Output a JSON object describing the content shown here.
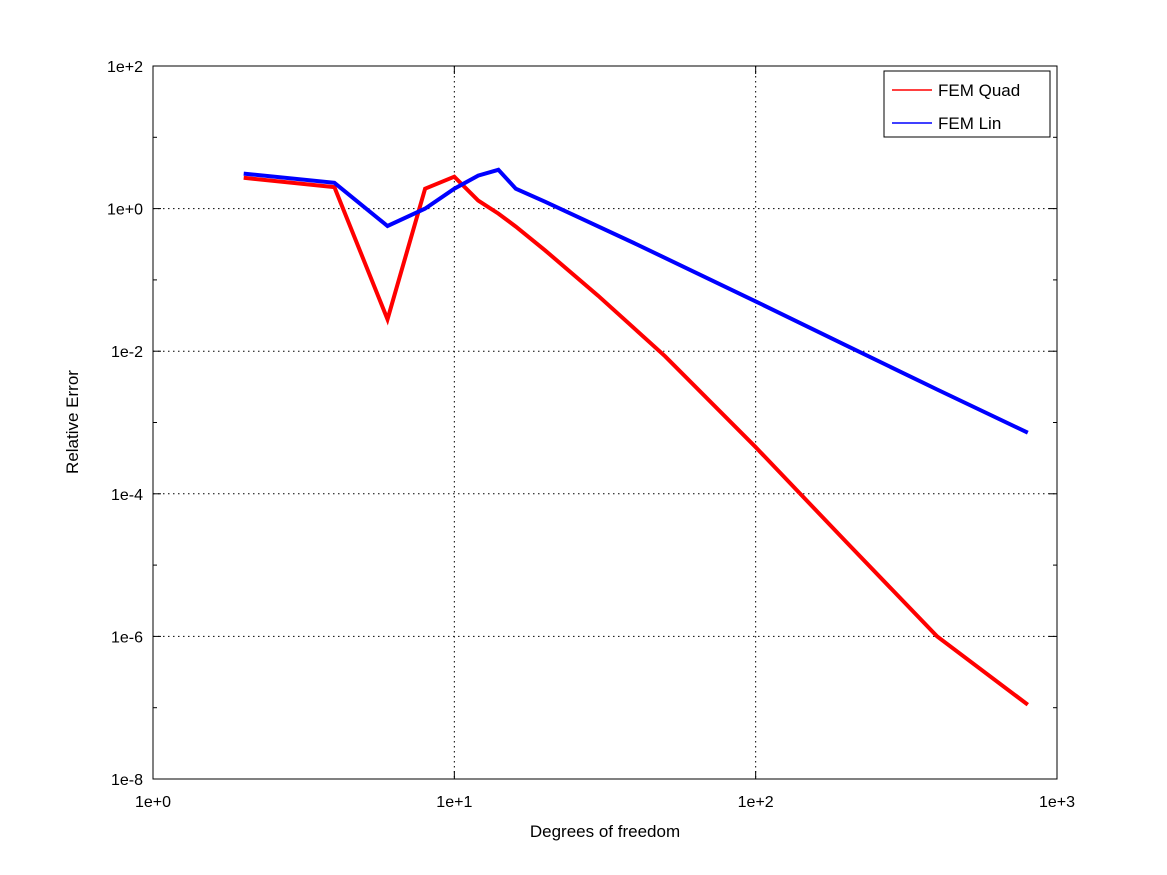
{
  "chart_data": {
    "type": "line",
    "title": "",
    "xlabel": "Degrees of freedom",
    "ylabel": "Relative Error",
    "xscale": "log",
    "yscale": "log",
    "xlim": [
      1,
      1000
    ],
    "ylim": [
      1e-08,
      100
    ],
    "grid": true,
    "legend_position": "top-right",
    "x_tick_labels": [
      "1e+0",
      "1e+1",
      "1e+2",
      "1e+3"
    ],
    "y_tick_labels": [
      "1e-8",
      "1e-6",
      "1e-4",
      "1e-2",
      "1e+0",
      "1e+2"
    ],
    "series": [
      {
        "name": "FEM Quad",
        "color": "#ff0000",
        "x": [
          2,
          4,
          6,
          8,
          10,
          12,
          14,
          16,
          20,
          30,
          50,
          100,
          200,
          400,
          800
        ],
        "y": [
          2.7,
          2.0,
          0.028,
          1.9,
          2.8,
          1.3,
          0.85,
          0.56,
          0.26,
          0.06,
          0.0085,
          0.00045,
          2.1e-05,
          1e-06,
          1.1e-07
        ]
      },
      {
        "name": "FEM Lin",
        "color": "#0000ff",
        "x": [
          2,
          4,
          6,
          8,
          10,
          12,
          14,
          16,
          20,
          40,
          100,
          200,
          400,
          800
        ],
        "y": [
          3.1,
          2.3,
          0.57,
          1.0,
          1.9,
          2.9,
          3.5,
          1.9,
          1.25,
          0.32,
          0.05,
          0.012,
          0.0029,
          0.00072
        ]
      }
    ]
  }
}
